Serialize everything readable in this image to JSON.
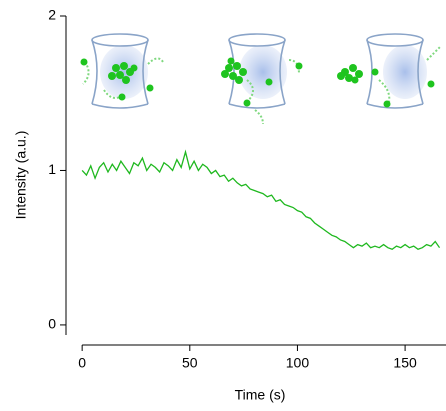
{
  "chart_data": {
    "type": "line",
    "x_label": "Time (s)",
    "y_label": "Intensity (a.u.)",
    "xlim": [
      -7.5,
      169
    ],
    "ylim": [
      -0.13,
      2
    ],
    "xticks": [
      0,
      50,
      100,
      150
    ],
    "yticks": [
      0,
      1,
      2
    ],
    "x": [
      0,
      2,
      4,
      6,
      8,
      10,
      12,
      14,
      16,
      18,
      20,
      22,
      24,
      26,
      28,
      30,
      32,
      34,
      36,
      38,
      40,
      42,
      44,
      46,
      48,
      50,
      52,
      54,
      56,
      58,
      60,
      62,
      64,
      66,
      68,
      70,
      72,
      74,
      76,
      78,
      80,
      82,
      84,
      86,
      88,
      90,
      92,
      94,
      96,
      98,
      100,
      102,
      104,
      106,
      108,
      110,
      112,
      114,
      116,
      118,
      120,
      122,
      124,
      126,
      128,
      130,
      132,
      134,
      136,
      138,
      140,
      142,
      144,
      146,
      148,
      150,
      152,
      154,
      156,
      158,
      160,
      162,
      164,
      166
    ],
    "series": [
      {
        "color": "#1fb81f",
        "values": [
          1.0,
          0.97,
          1.03,
          0.95,
          1.02,
          1.05,
          0.99,
          1.04,
          1.0,
          1.06,
          1.02,
          0.98,
          1.05,
          1.03,
          1.08,
          1.0,
          1.04,
          1.02,
          0.99,
          1.05,
          1.03,
          1.0,
          1.07,
          1.02,
          1.12,
          1.01,
          1.06,
          1.0,
          1.04,
          1.02,
          0.98,
          1.0,
          0.96,
          0.97,
          0.93,
          0.95,
          0.92,
          0.9,
          0.91,
          0.88,
          0.87,
          0.86,
          0.85,
          0.83,
          0.84,
          0.8,
          0.81,
          0.78,
          0.77,
          0.76,
          0.74,
          0.73,
          0.7,
          0.69,
          0.66,
          0.64,
          0.62,
          0.6,
          0.58,
          0.57,
          0.55,
          0.54,
          0.52,
          0.5,
          0.52,
          0.51,
          0.53,
          0.5,
          0.51,
          0.5,
          0.52,
          0.5,
          0.49,
          0.51,
          0.5,
          0.52,
          0.5,
          0.51,
          0.49,
          0.5,
          0.52,
          0.51,
          0.54,
          0.5
        ]
      }
    ]
  }
}
